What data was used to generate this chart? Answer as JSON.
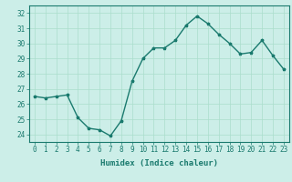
{
  "x": [
    0,
    1,
    2,
    3,
    4,
    5,
    6,
    7,
    8,
    9,
    10,
    11,
    12,
    13,
    14,
    15,
    16,
    17,
    18,
    19,
    20,
    21,
    22,
    23
  ],
  "y": [
    26.5,
    26.4,
    26.5,
    26.6,
    25.1,
    24.4,
    24.3,
    23.9,
    24.9,
    27.5,
    29.0,
    29.7,
    29.7,
    30.2,
    31.2,
    31.8,
    31.3,
    30.6,
    30.0,
    29.3,
    29.4,
    30.2,
    29.2,
    28.3
  ],
  "line_color": "#1a7a6e",
  "marker": "*",
  "bg_color": "#cceee8",
  "grid_color": "#aaddcc",
  "xlabel": "Humidex (Indice chaleur)",
  "ylim": [
    23.5,
    32.5
  ],
  "xlim": [
    -0.5,
    23.5
  ],
  "yticks": [
    24,
    25,
    26,
    27,
    28,
    29,
    30,
    31,
    32
  ],
  "xticks": [
    0,
    1,
    2,
    3,
    4,
    5,
    6,
    7,
    8,
    9,
    10,
    11,
    12,
    13,
    14,
    15,
    16,
    17,
    18,
    19,
    20,
    21,
    22,
    23
  ],
  "tick_fontsize": 5.5,
  "xlabel_fontsize": 6.5,
  "line_width": 1.0,
  "marker_size": 2.5
}
